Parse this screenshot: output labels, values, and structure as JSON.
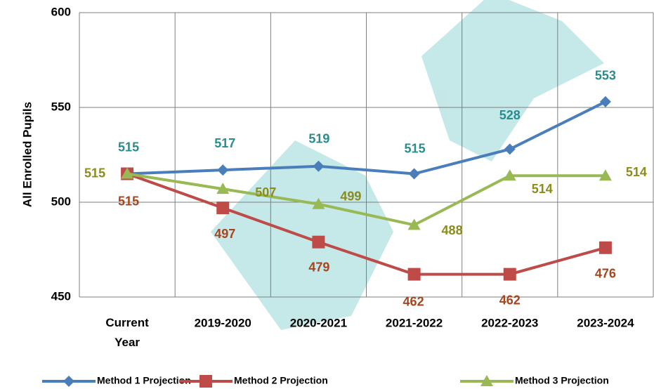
{
  "chart_data": {
    "type": "line",
    "y_label": "All Enrolled Pupils",
    "categories": [
      "Current Year",
      "2019-2020",
      "2020-2021",
      "2021-2022",
      "2022-2023",
      "2023-2024"
    ],
    "series": [
      {
        "name": "Method 1 Projection",
        "color": "#4a7ebb",
        "label_color": "#2a8c8c",
        "marker": "diamond",
        "values": [
          515,
          517,
          519,
          515,
          528,
          553
        ]
      },
      {
        "name": "Method 2 Projection",
        "color": "#be4b48",
        "label_color": "#a4461f",
        "marker": "square",
        "values": [
          515,
          497,
          479,
          462,
          462,
          476
        ]
      },
      {
        "name": "Method 3 Projection",
        "color": "#98b954",
        "label_color": "#8c8c1a",
        "marker": "triangle",
        "values": [
          515,
          507,
          499,
          488,
          514,
          514
        ]
      }
    ],
    "ylim": [
      450,
      600
    ],
    "yticks": [
      450,
      500,
      550,
      600
    ],
    "grid": true,
    "legend": "bottom"
  }
}
